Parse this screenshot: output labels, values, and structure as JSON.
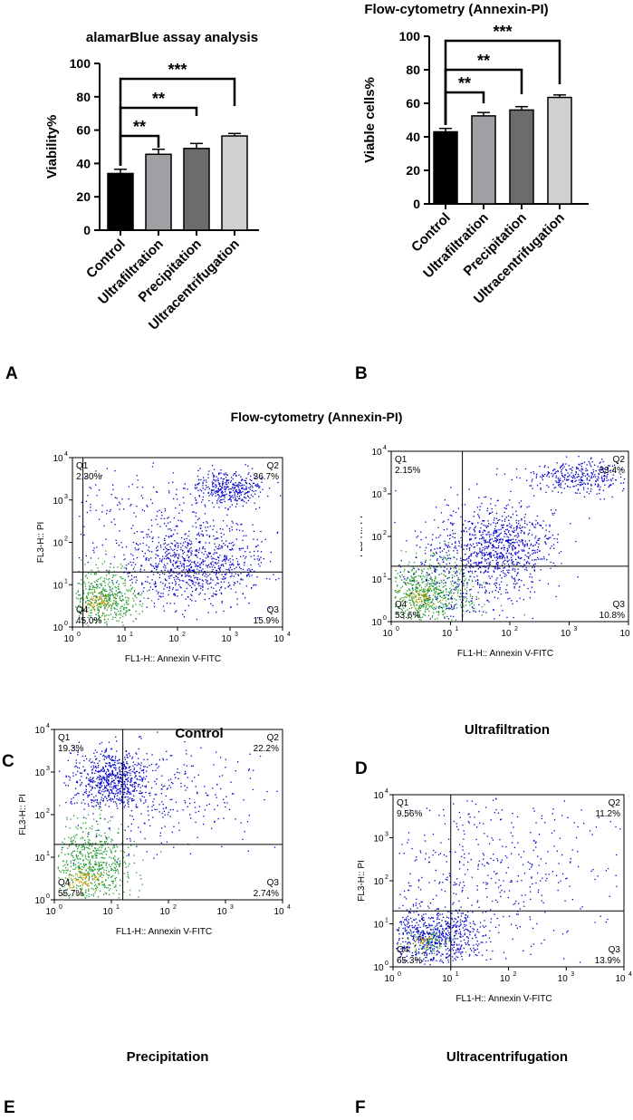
{
  "colors": {
    "control": "#000000",
    "ultrafiltration": "#a0a0a4",
    "precipitation": "#6c6c6c",
    "ultracentrifugation": "#d0d0d0"
  },
  "panel_labels": {
    "a": "A",
    "b": "B",
    "c": "C",
    "d": "D",
    "e": "E",
    "f": "F"
  },
  "flow_section_title": "Flow-cytometry (Annexin-PI)",
  "chart_data": [
    {
      "id": "A",
      "type": "bar",
      "title": "alamarBlue assay analysis",
      "xlabel": "",
      "ylabel": "Viability%",
      "ylim": [
        0,
        100
      ],
      "yticks": [
        0,
        20,
        40,
        60,
        80,
        100
      ],
      "categories": [
        "Control",
        "Ultrafiltration",
        "Precipitation",
        "Ultracentrifugation"
      ],
      "values": [
        34,
        45.5,
        49,
        56.5
      ],
      "errors": [
        2.5,
        3,
        3,
        1.5
      ],
      "significance": [
        {
          "from": 0,
          "to": 1,
          "label": "**"
        },
        {
          "from": 0,
          "to": 2,
          "label": "**"
        },
        {
          "from": 0,
          "to": 3,
          "label": "***"
        }
      ]
    },
    {
      "id": "B",
      "type": "bar",
      "title": "Flow-cytometry (Annexin-PI)",
      "xlabel": "",
      "ylabel": "Viable cells%",
      "ylim": [
        0,
        100
      ],
      "yticks": [
        0,
        20,
        40,
        60,
        80,
        100
      ],
      "categories": [
        "Control",
        "Ultrafiltration",
        "Precipitation",
        "Ultracentrifugation"
      ],
      "values": [
        43,
        52.5,
        56,
        63.5
      ],
      "errors": [
        2,
        2,
        2,
        1.5
      ],
      "significance": [
        {
          "from": 0,
          "to": 1,
          "label": "**"
        },
        {
          "from": 0,
          "to": 2,
          "label": "**"
        },
        {
          "from": 0,
          "to": 3,
          "label": "***"
        }
      ]
    },
    {
      "id": "C",
      "type": "scatter",
      "subtitle": "Control",
      "xlabel": "FL1-H:: Annexin V-FITC",
      "ylabel": "FL3-H:: PI",
      "x_ticks": [
        "10",
        "10",
        "10",
        "10",
        "10"
      ],
      "tick_exponents": [
        "0",
        "1",
        "2",
        "3",
        "4"
      ],
      "quadrants": [
        {
          "name": "Q1",
          "value": "2.30%"
        },
        {
          "name": "Q2",
          "value": "36.7%"
        },
        {
          "name": "Q3",
          "value": "15.9%"
        },
        {
          "name": "Q4",
          "value": "45.0%"
        }
      ],
      "gate": [
        0.2,
        1.3
      ]
    },
    {
      "id": "D",
      "type": "scatter",
      "subtitle": "Ultrafiltration",
      "xlabel": "FL1-H:: Annexin V-FITC",
      "ylabel": "FL3-H:: PI",
      "x_ticks": [
        "10",
        "10",
        "10",
        "10",
        "10"
      ],
      "tick_exponents": [
        "0",
        "1",
        "2",
        "3",
        "4"
      ],
      "quadrants": [
        {
          "name": "Q1",
          "value": "2.15%"
        },
        {
          "name": "Q2",
          "value": "33.4%"
        },
        {
          "name": "Q3",
          "value": "10.8%"
        },
        {
          "name": "Q4",
          "value": "53.6%"
        }
      ],
      "gate": [
        1.2,
        1.3
      ]
    },
    {
      "id": "E",
      "type": "scatter",
      "subtitle": "Precipitation",
      "xlabel": "FL1-H:: Annexin V-FITC",
      "ylabel": "FL3-H:: PI",
      "x_ticks": [
        "10",
        "10",
        "10",
        "10",
        "10"
      ],
      "tick_exponents": [
        "0",
        "1",
        "2",
        "3",
        "4"
      ],
      "quadrants": [
        {
          "name": "Q1",
          "value": "19.3%"
        },
        {
          "name": "Q2",
          "value": "22.2%"
        },
        {
          "name": "Q3",
          "value": "2.74%"
        },
        {
          "name": "Q4",
          "value": "55.7%"
        }
      ],
      "gate": [
        1.2,
        1.3
      ]
    },
    {
      "id": "F",
      "type": "scatter",
      "subtitle": "Ultracentrifugation",
      "xlabel": "FL1-H:: Annexin V-FITC",
      "ylabel": "FL3-H:: PI",
      "x_ticks": [
        "10",
        "10",
        "10",
        "10",
        "10"
      ],
      "tick_exponents": [
        "0",
        "1",
        "2",
        "3",
        "4"
      ],
      "quadrants": [
        {
          "name": "Q1",
          "value": "9.56%"
        },
        {
          "name": "Q2",
          "value": "11.2%"
        },
        {
          "name": "Q3",
          "value": "13.9%"
        },
        {
          "name": "Q4",
          "value": "65.3%"
        }
      ],
      "gate": [
        1.0,
        1.3
      ]
    }
  ]
}
